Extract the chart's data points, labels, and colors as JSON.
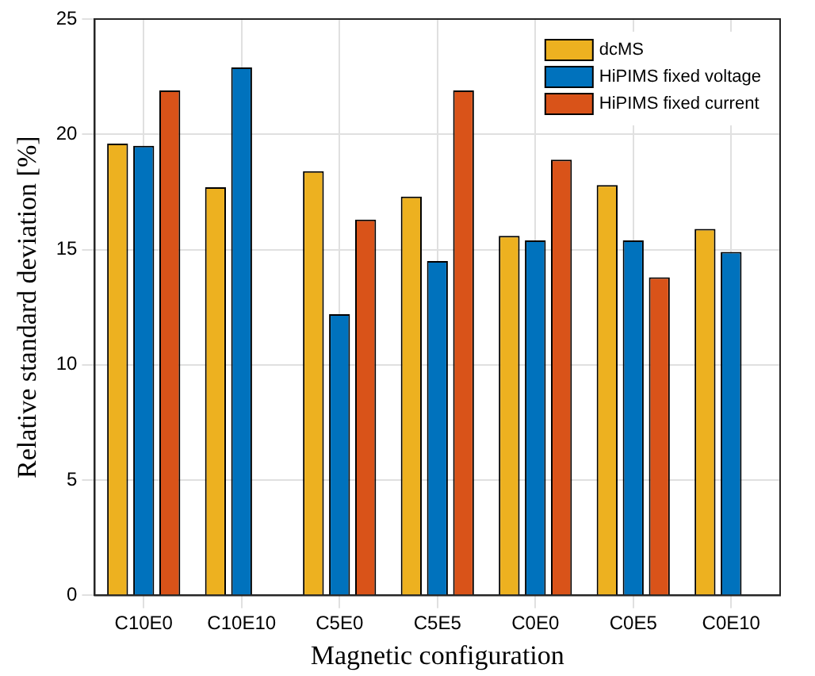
{
  "chart_data": {
    "type": "bar",
    "xlabel": "Magnetic configuration",
    "ylabel": "Relative standard deviation [%]",
    "categories": [
      "C10E0",
      "C10E10",
      "C5E0",
      "C5E5",
      "C0E0",
      "C0E5",
      "C0E10"
    ],
    "series": [
      {
        "name": "dcMS",
        "color": "#edb120",
        "values": [
          19.6,
          17.7,
          18.4,
          17.3,
          15.6,
          17.8,
          15.9
        ]
      },
      {
        "name": "HiPIMS fixed voltage",
        "color": "#0072bd",
        "values": [
          19.5,
          22.9,
          12.2,
          14.5,
          15.4,
          15.4,
          14.9
        ]
      },
      {
        "name": "HiPIMS fixed current",
        "color": "#d95319",
        "values": [
          21.9,
          null,
          16.3,
          21.9,
          18.9,
          13.8,
          null
        ]
      }
    ],
    "ylim": [
      0,
      25
    ],
    "yticks": [
      0,
      5,
      10,
      15,
      20,
      25
    ],
    "grid": true,
    "legend": "top right"
  }
}
